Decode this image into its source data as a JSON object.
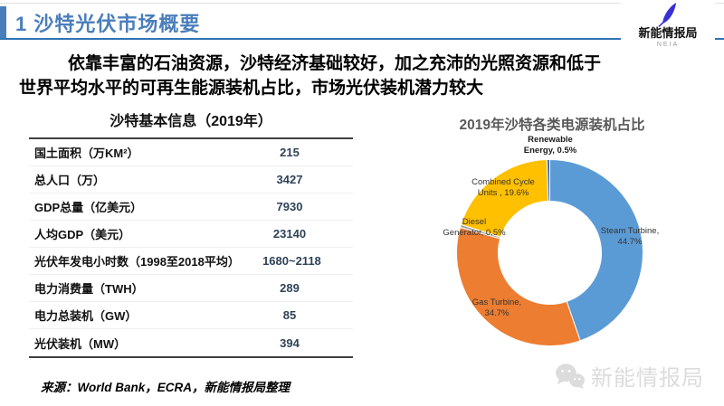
{
  "header": {
    "title": "1 沙特光伏市场概要",
    "logo": {
      "name": "新能情报局",
      "sub": "NEIA"
    }
  },
  "intro": {
    "line1": "依靠丰富的石油资源，沙特经济基础较好，加之充沛的光照资源和低于",
    "line2": "世界平均水平的可再生能源装机占比，市场光伏装机潜力较大"
  },
  "table": {
    "title": "沙特基本信息（2019年）",
    "rows": [
      {
        "label": "国土面积（万KM²）",
        "value": "215"
      },
      {
        "label": "总人口（万）",
        "value": "3427"
      },
      {
        "label": "GDP总量（亿美元）",
        "value": "7930"
      },
      {
        "label": "人均GDP（美元）",
        "value": "23140"
      },
      {
        "label": "光伏年发电小时数（1998至2018平均）",
        "value": "1680~2118"
      },
      {
        "label": "电力消费量（TWH）",
        "value": "289"
      },
      {
        "label": "电力总装机（GW）",
        "value": "85"
      },
      {
        "label": "光伏装机（MW）",
        "value": "394"
      }
    ]
  },
  "source": "来源：World Bank，ECRA，新能情报局整理",
  "watermark": "新能情报局",
  "colors": {
    "accent_blue": "#4A7EBB",
    "header_rule_blue": "#2E74B5",
    "table_value_navy": "#2F4358",
    "feather_indigo": "#3832D2"
  },
  "chart_data": {
    "type": "pie",
    "donut": true,
    "title": "2019年沙特各类电源装机占比",
    "start_angle_deg": 0,
    "direction": "clockwise",
    "legend_position": "none",
    "slices": [
      {
        "label": "Steam Turbine",
        "value": 44.7,
        "color": "#5B9BD5"
      },
      {
        "label": "Gas Turbine",
        "value": 34.7,
        "color": "#ED7D31"
      },
      {
        "label": "Diesel Generator",
        "value": 0.5,
        "color": "#A5A5A5"
      },
      {
        "label": "Combined Cycle Units",
        "value": 19.6,
        "color": "#FFC000"
      },
      {
        "label": "Renewable Energy",
        "value": 0.5,
        "color": "#4472C4"
      }
    ],
    "labels": {
      "renewable": {
        "line1": "Renewable",
        "line2": "Energy, 0.5%"
      },
      "combined": {
        "line1": "Combined Cycle",
        "line2": "Units , 19.6%"
      },
      "diesel": {
        "line1": "Diesel",
        "line2": "Generator, 0.5%"
      },
      "steam": {
        "line1": "Steam Turbine,",
        "line2": "44.7%"
      },
      "gas": {
        "line1": "Gas Turbine,",
        "line2": "34.7%"
      }
    }
  }
}
